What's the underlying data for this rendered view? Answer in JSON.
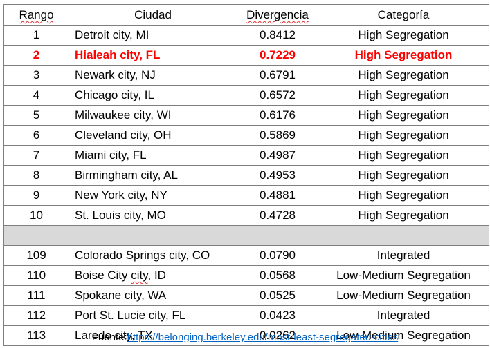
{
  "table": {
    "headers": {
      "rank": "Rango",
      "city": "Ciudad",
      "divergence": "Divergencia",
      "category": "Categoría"
    },
    "top_rows": [
      {
        "rank": "1",
        "city": "Detroit city, MI",
        "divergence": "0.8412",
        "category": "High Segregation",
        "highlight": false
      },
      {
        "rank": "2",
        "city": "Hialeah city, FL",
        "divergence": "0.7229",
        "category": "High Segregation",
        "highlight": true
      },
      {
        "rank": "3",
        "city": "Newark city, NJ",
        "divergence": "0.6791",
        "category": "High Segregation",
        "highlight": false
      },
      {
        "rank": "4",
        "city": "Chicago city, IL",
        "divergence": "0.6572",
        "category": "High Segregation",
        "highlight": false
      },
      {
        "rank": "5",
        "city": "Milwaukee city, WI",
        "divergence": "0.6176",
        "category": "High Segregation",
        "highlight": false
      },
      {
        "rank": "6",
        "city": "Cleveland city, OH",
        "divergence": "0.5869",
        "category": "High Segregation",
        "highlight": false
      },
      {
        "rank": "7",
        "city": "Miami city, FL",
        "divergence": "0.4987",
        "category": "High Segregation",
        "highlight": false
      },
      {
        "rank": "8",
        "city": "Birmingham city, AL",
        "divergence": "0.4953",
        "category": "High Segregation",
        "highlight": false
      },
      {
        "rank": "9",
        "city": "New York city, NY",
        "divergence": "0.4881",
        "category": "High Segregation",
        "highlight": false
      },
      {
        "rank": "10",
        "city": "St. Louis city, MO",
        "divergence": "0.4728",
        "category": "High Segregation",
        "highlight": false
      }
    ],
    "bottom_rows": [
      {
        "rank": "109",
        "city": "Colorado Springs city, CO",
        "divergence": "0.0790",
        "category": "Integrated"
      },
      {
        "rank": "110",
        "city": "Boise City city, ID",
        "divergence": "0.0568",
        "category": "Low-Medium Segregation"
      },
      {
        "rank": "111",
        "city": "Spokane city, WA",
        "divergence": "0.0525",
        "category": "Low-Medium Segregation"
      },
      {
        "rank": "112",
        "city": "Port St. Lucie city, FL",
        "divergence": "0.0423",
        "category": "Integrated"
      },
      {
        "rank": "113",
        "city": "Laredo city, TX",
        "divergence": "0.0262",
        "category": "Low-Medium Segregation"
      }
    ]
  },
  "source": {
    "label": "Fuente:",
    "link_text": "https://belonging.berkeley.edu/most-least-segregated-cities"
  },
  "colors": {
    "highlight": "#ff0000",
    "separator": "#d9d9d9",
    "border": "#7f7f7f",
    "link": "#0563c1"
  }
}
